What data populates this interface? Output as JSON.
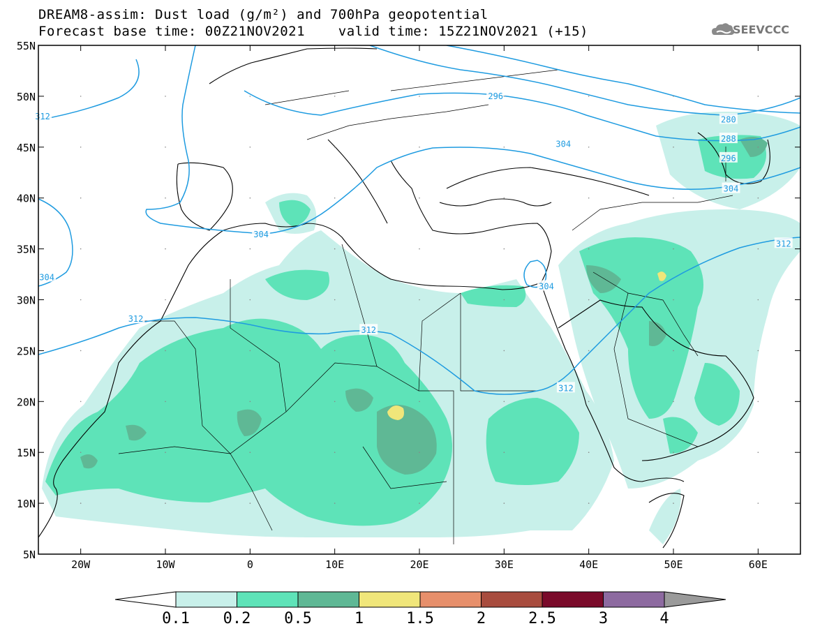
{
  "title_line1": "DREAM8-assim: Dust load (g/m²) and 700hPa geopotential",
  "title_line2": "Forecast base time: 00Z21NOV2021    valid time: 15Z21NOV2021 (+15)",
  "logo_text": "SEEVCCC",
  "map": {
    "lon_range": [
      -25,
      65
    ],
    "lat_range": [
      5,
      55
    ],
    "lat_ticks": [
      {
        "value": 55,
        "label": "55N"
      },
      {
        "value": 50,
        "label": "50N"
      },
      {
        "value": 45,
        "label": "45N"
      },
      {
        "value": 40,
        "label": "40N"
      },
      {
        "value": 35,
        "label": "35N"
      },
      {
        "value": 30,
        "label": "30N"
      },
      {
        "value": 25,
        "label": "25N"
      },
      {
        "value": 20,
        "label": "20N"
      },
      {
        "value": 15,
        "label": "15N"
      },
      {
        "value": 10,
        "label": "10N"
      },
      {
        "value": 5,
        "label": "5N"
      }
    ],
    "lon_ticks": [
      {
        "value": -20,
        "label": "20W"
      },
      {
        "value": -10,
        "label": "10W"
      },
      {
        "value": 0,
        "label": "0"
      },
      {
        "value": 10,
        "label": "10E"
      },
      {
        "value": 20,
        "label": "20E"
      },
      {
        "value": 30,
        "label": "30E"
      },
      {
        "value": 40,
        "label": "40E"
      },
      {
        "value": 50,
        "label": "50E"
      },
      {
        "value": 60,
        "label": "60E"
      }
    ],
    "contour_labels": [
      {
        "text": "312",
        "lon": -24.5,
        "lat": 48
      },
      {
        "text": "296",
        "lon": 29,
        "lat": 50
      },
      {
        "text": "280",
        "lon": 56.5,
        "lat": 47.7
      },
      {
        "text": "288",
        "lon": 56.5,
        "lat": 45.8
      },
      {
        "text": "296",
        "lon": 56.5,
        "lat": 43.9
      },
      {
        "text": "304",
        "lon": 56.8,
        "lat": 40.9
      },
      {
        "text": "304",
        "lon": 37,
        "lat": 45.3
      },
      {
        "text": "304",
        "lon": 1.3,
        "lat": 36.4
      },
      {
        "text": "304",
        "lon": -24,
        "lat": 32.2
      },
      {
        "text": "304",
        "lon": 35,
        "lat": 31.3
      },
      {
        "text": "312",
        "lon": -13.5,
        "lat": 28.1
      },
      {
        "text": "312",
        "lon": 14,
        "lat": 27
      },
      {
        "text": "312",
        "lon": 37.3,
        "lat": 21.3
      },
      {
        "text": "312",
        "lon": 63,
        "lat": 35.5
      }
    ]
  },
  "colorbar": {
    "labels": [
      "0.1",
      "0.2",
      "0.5",
      "1",
      "1.5",
      "2",
      "2.5",
      "3",
      "4"
    ],
    "colors": [
      "#c8f0ea",
      "#5ee3b8",
      "#5fb895",
      "#f0e67a",
      "#e78f6b",
      "#a84c3e",
      "#7a0a2a",
      "#8d6aa0"
    ],
    "over_color": "#9a9a9a",
    "under_color": "#ffffff"
  },
  "colors": {
    "contour": "#1e9be0",
    "coast": "#000000",
    "dust_low": "#c8f0ea",
    "dust_mid": "#5ee3b8",
    "dust_high": "#5fb895",
    "dust_peak": "#f0e67a"
  }
}
